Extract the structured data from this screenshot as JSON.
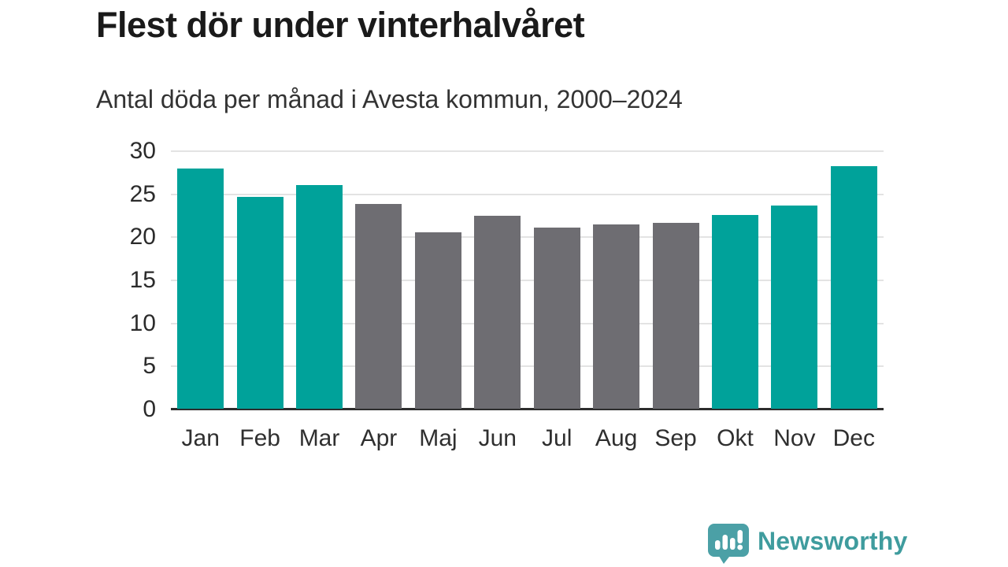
{
  "header": {
    "title": "Flest dör under vinterhalvåret",
    "subtitle": "Antal döda per månad i Avesta kommun, 2000–2024"
  },
  "chart_data": {
    "type": "bar",
    "title": "Flest dör under vinterhalvåret",
    "subtitle": "Antal döda per månad i Avesta kommun, 2000–2024",
    "categories": [
      "Jan",
      "Feb",
      "Mar",
      "Apr",
      "Maj",
      "Jun",
      "Jul",
      "Aug",
      "Sep",
      "Okt",
      "Nov",
      "Dec"
    ],
    "values": [
      27.9,
      24.6,
      26.0,
      23.8,
      20.5,
      22.4,
      21.0,
      21.4,
      21.6,
      22.5,
      23.6,
      28.2
    ],
    "bar_color_keys": [
      "teal",
      "teal",
      "teal",
      "gray",
      "gray",
      "gray",
      "gray",
      "gray",
      "gray",
      "teal",
      "teal",
      "teal"
    ],
    "colors": {
      "teal": "#00a29a",
      "gray": "#6e6d72"
    },
    "xlabel": "",
    "ylabel": "",
    "ylim": [
      0,
      30
    ],
    "yticks": [
      0,
      5,
      10,
      15,
      20,
      25,
      30
    ],
    "grid": "horizontal-light",
    "legend": "none",
    "axis_line_color": "#2d2d2d",
    "gridline_color": "#e3e3e3"
  },
  "footer": {
    "brand": "Newsworthy",
    "brand_color": "#3f9c9e",
    "logo_color": "#4ba0a6"
  }
}
